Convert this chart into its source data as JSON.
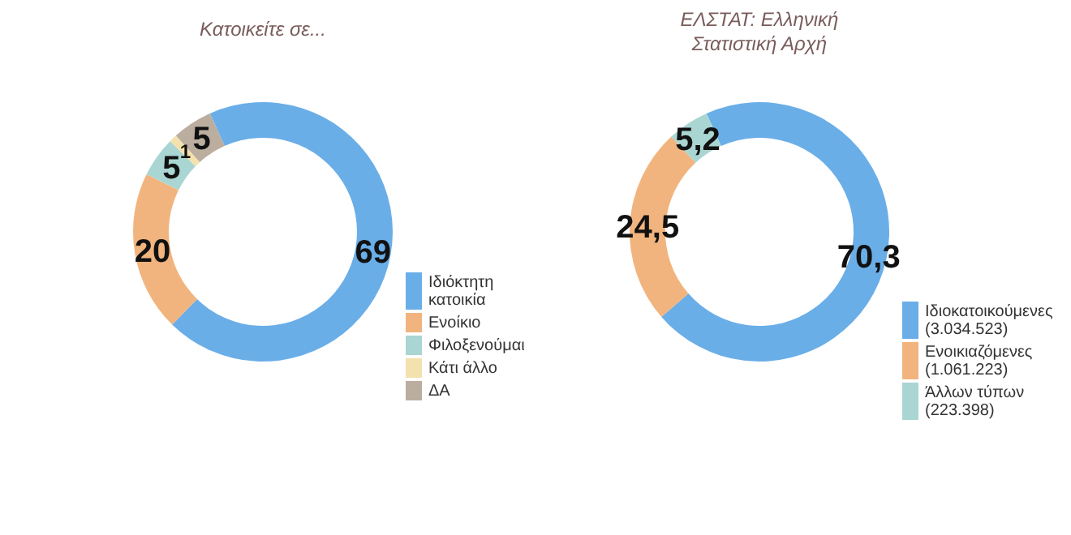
{
  "chart_data": [
    {
      "type": "donut",
      "title": "Κατοικείτε σε...",
      "categories": [
        "Ιδιόκτητη κατοικία",
        "Ενοίκιο",
        "Φιλοξενούμαι",
        "Κάτι άλλο",
        "ΔΑ"
      ],
      "values": [
        69,
        20,
        5,
        1,
        5
      ],
      "colors": [
        "#6aaee8",
        "#f2b47e",
        "#a9d6d2",
        "#f3e2ad",
        "#bcae9e"
      ],
      "value_labels": [
        "69",
        "20",
        "5",
        "1",
        "5"
      ],
      "legend": "bottom right"
    },
    {
      "type": "donut",
      "title": "ΕΛΣΤΑΤ: Ελληνική Στατιστική Αρχή",
      "categories": [
        "Ιδιοκατοικούμενες (3.034.523)",
        "Ενοικιαζόμενες (1.061.223)",
        "Άλλων τύπων (223.398)"
      ],
      "values": [
        70.3,
        24.5,
        5.2
      ],
      "colors": [
        "#6aaee8",
        "#f2b47e",
        "#a9d6d2"
      ],
      "value_labels": [
        "70,3",
        "24,5",
        "5,2"
      ],
      "legend": "bottom right"
    }
  ]
}
